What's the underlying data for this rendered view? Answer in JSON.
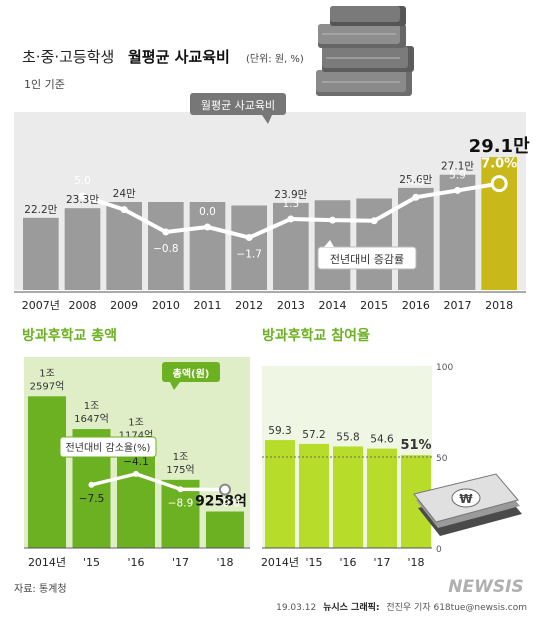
{
  "header": {
    "title_plain": "초·중·고등학생",
    "title_bold": "월평균 사교육비",
    "unit": "(단위: 원, %)",
    "basis": "1인 기준"
  },
  "footer": {
    "source": "자료: 통계청",
    "credit_date": "19.03.12",
    "credit_org": "뉴시스 그래픽:",
    "credit_rest": "전진우 기자 618tue@newsis.com",
    "watermark": "NEWSIS"
  },
  "colors": {
    "gray_bar": "#9b9b9b",
    "highlight_bar": "#c8b81a",
    "green_panel": "#dfeec7",
    "green_bar": "#6cb121",
    "lime_bar": "#b7dd2a",
    "title_green": "#6cb121"
  },
  "chart_data": [
    {
      "type": "bar",
      "categories": [
        "2007년",
        "2008",
        "2009",
        "2010",
        "2011",
        "2012",
        "2013",
        "2014",
        "2015",
        "2016",
        "2017",
        "2018"
      ],
      "series": [
        {
          "name": "월평균 사교육비",
          "values": [
            22.2,
            23.3,
            24,
            24,
            24,
            23.6,
            23.9,
            24.2,
            24.4,
            25.6,
            27.1,
            29.1
          ],
          "labels": [
            "22.2만",
            "23.3만",
            "24만",
            "",
            "",
            "",
            "23.9만",
            "",
            "",
            "25.6만",
            "27.1만",
            "29.1만"
          ]
        },
        {
          "name": "전년대비 증감률",
          "type": "line",
          "values": [
            null,
            5.0,
            2.8,
            -0.8,
            0.0,
            -1.7,
            1.3,
            1.1,
            1.0,
            4.8,
            5.9,
            7.0
          ],
          "labels": [
            "",
            "5.0",
            "",
            "−0.8",
            "0.0",
            "−1.7",
            "1.3",
            "",
            "",
            "4.8",
            "5.9",
            "7.0%"
          ]
        }
      ],
      "ylabel": ""
    },
    {
      "type": "bar",
      "title": "방과후학교 총액",
      "categories": [
        "2014년",
        "'15",
        "'16",
        "'17",
        "'18"
      ],
      "series": [
        {
          "name": "총액(원)",
          "values": [
            12597,
            11647,
            11174,
            10175,
            9258
          ],
          "labels_top": [
            "1조",
            "1조",
            "1조",
            "1조",
            ""
          ],
          "labels_bottom": [
            "2597억",
            "1647억",
            "1174억",
            "175억",
            "9258억"
          ]
        },
        {
          "name": "전년대비 감소율(%)",
          "type": "line",
          "values": [
            null,
            -7.5,
            -4.1,
            -8.9,
            -9.0
          ],
          "labels": [
            "",
            "−7.5",
            "−4.1",
            "−8.9",
            "−9.0"
          ]
        }
      ]
    },
    {
      "type": "bar",
      "title": "방과후학교 참여율",
      "categories": [
        "2014년",
        "'15",
        "'16",
        "'17",
        "'18"
      ],
      "values": [
        59.3,
        57.2,
        55.8,
        54.6,
        51
      ],
      "value_labels": [
        "59.3",
        "57.2",
        "55.8",
        "54.6",
        "51%"
      ],
      "ylim": [
        0,
        100
      ],
      "yticks": [
        "100",
        "50",
        "0"
      ]
    }
  ]
}
